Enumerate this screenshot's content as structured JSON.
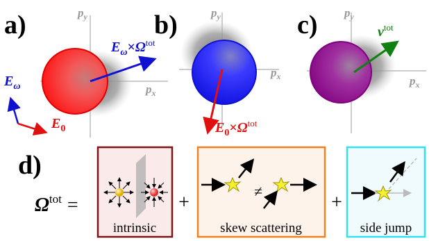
{
  "panels": {
    "a": {
      "label": "a)",
      "py": {
        "base": "p",
        "sub": "y"
      },
      "px": {
        "base": "p",
        "sub": "x"
      },
      "cross": {
        "base": "E",
        "sub": "ω",
        "op": "×",
        "vec": "Ω",
        "sup": "tot"
      },
      "e_omega": {
        "base": "E",
        "sub": "ω"
      },
      "e_zero": {
        "base": "E",
        "sub": "0"
      }
    },
    "b": {
      "label": "b)",
      "py": {
        "base": "p",
        "sub": "y"
      },
      "px": {
        "base": "p",
        "sub": "x"
      },
      "cross": {
        "base": "E",
        "sub": "0",
        "op": "×",
        "vec": "Ω",
        "sup": "tot"
      }
    },
    "c": {
      "label": "c)",
      "py": {
        "base": "p",
        "sub": "y"
      },
      "px": {
        "base": "p",
        "sub": "x"
      },
      "velocity": {
        "base": "v",
        "sup": "tot"
      }
    }
  },
  "equation": {
    "label": "d)",
    "lhs": {
      "base": "Ω",
      "sup": "tot"
    },
    "equals": "=",
    "plus": [
      "+",
      "+"
    ],
    "terms": [
      {
        "caption": "intrinsic"
      },
      {
        "caption": "skew scattering",
        "neq": "≠"
      },
      {
        "caption": "side jump"
      }
    ]
  }
}
